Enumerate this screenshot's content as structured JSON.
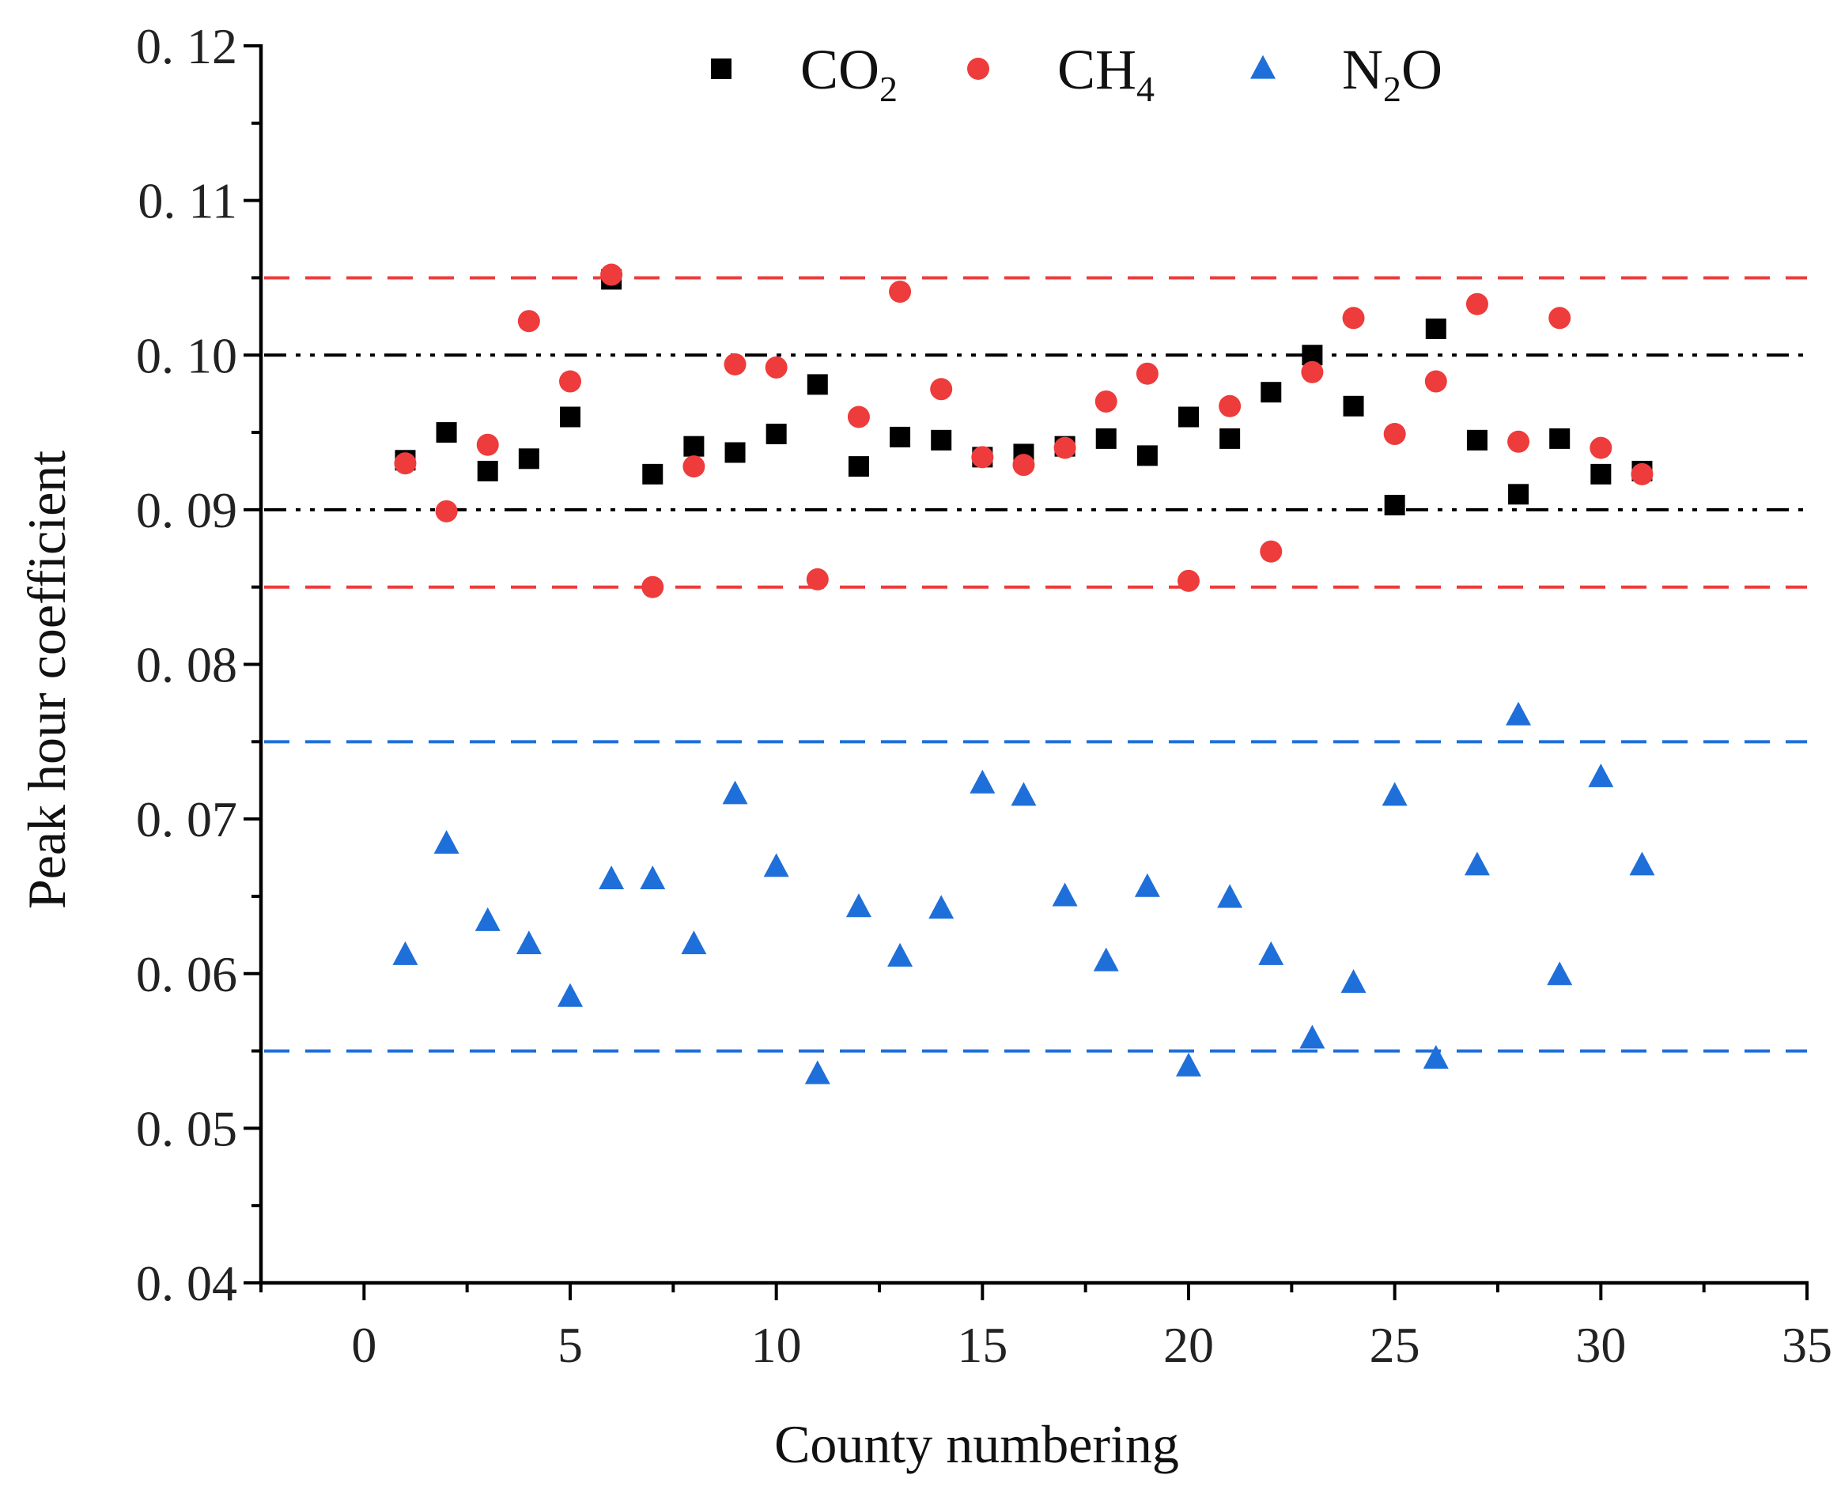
{
  "chart_data": {
    "type": "scatter",
    "title": "",
    "xlabel": "County numbering",
    "ylabel": "Peak hour coefficient",
    "xlim": [
      -2.5,
      35
    ],
    "ylim": [
      0.04,
      0.12
    ],
    "x_ticks": [
      0,
      5,
      10,
      15,
      20,
      25,
      30,
      35
    ],
    "x_tick_labels": [
      "0",
      "5",
      "10",
      "15",
      "20",
      "25",
      "30",
      "35"
    ],
    "y_ticks": [
      0.04,
      0.05,
      0.06,
      0.07,
      0.08,
      0.09,
      0.1,
      0.11,
      0.12
    ],
    "y_tick_labels": [
      "0. 04",
      "0. 05",
      "0. 06",
      "0. 07",
      "0. 08",
      "0. 09",
      "0. 10",
      "0. 11",
      "0. 12"
    ],
    "grid": false,
    "legend_position": "top",
    "legend": [
      {
        "series": "CO2",
        "base": "CO",
        "sub": "2",
        "tail": ""
      },
      {
        "series": "CH4",
        "base": "CH",
        "sub": "4",
        "tail": ""
      },
      {
        "series": "N2O",
        "base": "N",
        "sub": "2",
        "tail": "O"
      }
    ],
    "x": [
      1,
      2,
      3,
      4,
      5,
      6,
      7,
      8,
      9,
      10,
      11,
      12,
      13,
      14,
      15,
      16,
      17,
      18,
      19,
      20,
      21,
      22,
      23,
      24,
      25,
      26,
      27,
      28,
      29,
      30,
      31
    ],
    "series": [
      {
        "name": "CO2",
        "marker": "square",
        "color": "#000000",
        "values": [
          0.0932,
          0.095,
          0.0925,
          0.0933,
          0.096,
          0.1049,
          0.0923,
          0.0941,
          0.0937,
          0.0949,
          0.0981,
          0.0928,
          0.0947,
          0.0945,
          0.0934,
          0.0936,
          0.0941,
          0.0946,
          0.0935,
          0.096,
          0.0946,
          0.0976,
          0.1,
          0.0967,
          0.0903,
          0.1017,
          0.0945,
          0.091,
          0.0946,
          0.0923,
          0.0925
        ]
      },
      {
        "name": "CH4",
        "marker": "circle",
        "color": "#ee3b3b",
        "values": [
          0.093,
          0.0899,
          0.0942,
          0.1022,
          0.0983,
          0.1052,
          0.085,
          0.0928,
          0.0994,
          0.0992,
          0.0855,
          0.096,
          0.1041,
          0.0978,
          0.0934,
          0.0929,
          0.094,
          0.097,
          0.0988,
          0.0854,
          0.0967,
          0.0873,
          0.0989,
          0.1024,
          0.0949,
          0.0983,
          0.1033,
          0.0944,
          0.1024,
          0.094,
          0.0923
        ]
      },
      {
        "name": "N2O",
        "marker": "triangle",
        "color": "#1e6fd9",
        "values": [
          0.0612,
          0.0684,
          0.0634,
          0.0619,
          0.0585,
          0.0661,
          0.0661,
          0.0619,
          0.0716,
          0.0669,
          0.0535,
          0.0643,
          0.0611,
          0.0642,
          0.0723,
          0.0715,
          0.065,
          0.0608,
          0.0656,
          0.054,
          0.0649,
          0.0612,
          0.0558,
          0.0594,
          0.0715,
          0.0545,
          0.067,
          0.0767,
          0.0599,
          0.0727,
          0.067
        ]
      }
    ],
    "reference_lines": [
      {
        "y": 0.105,
        "style": "dashed",
        "color": "#ee3b3b"
      },
      {
        "y": 0.085,
        "style": "dashed",
        "color": "#ee3b3b"
      },
      {
        "y": 0.1,
        "style": "dash-dot-dot",
        "color": "#000000"
      },
      {
        "y": 0.09,
        "style": "dash-dot-dot",
        "color": "#000000"
      },
      {
        "y": 0.075,
        "style": "dashed",
        "color": "#1e6fd9"
      },
      {
        "y": 0.055,
        "style": "dashed",
        "color": "#1e6fd9"
      }
    ]
  }
}
